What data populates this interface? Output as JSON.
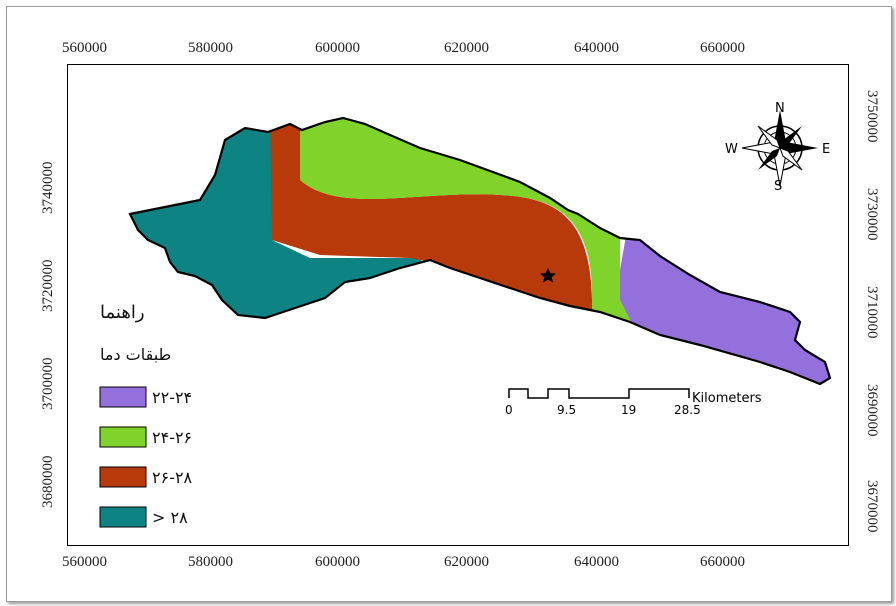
{
  "x_ticks": [
    "560000",
    "580000",
    "600000",
    "620000",
    "640000",
    "660000"
  ],
  "y_ticks": [
    "3740000",
    "3720000",
    "3700000",
    "3680000"
  ],
  "y_ticks_right": [
    "3750000",
    "3730000",
    "3710000",
    "3690000",
    "3670000"
  ],
  "legend": {
    "title": "راهنما",
    "subtitle": "طبقات دما",
    "items": [
      {
        "label": "۲۲-۲۴",
        "color": "#9370DB"
      },
      {
        "label": "۲۴-۲۶",
        "color": "#7FD32A"
      },
      {
        "label": "۲۶-۲۸",
        "color": "#B83A0A"
      },
      {
        "label": "> ۲۸",
        "color": "#0E8383"
      }
    ]
  },
  "scale_bar": {
    "unit": "Kilometers",
    "labels": [
      "0",
      "9.5",
      "19",
      "28.5"
    ]
  },
  "north_arrow": {
    "n": "N",
    "s": "S",
    "e": "E",
    "w": "W"
  },
  "marker": "star-icon"
}
